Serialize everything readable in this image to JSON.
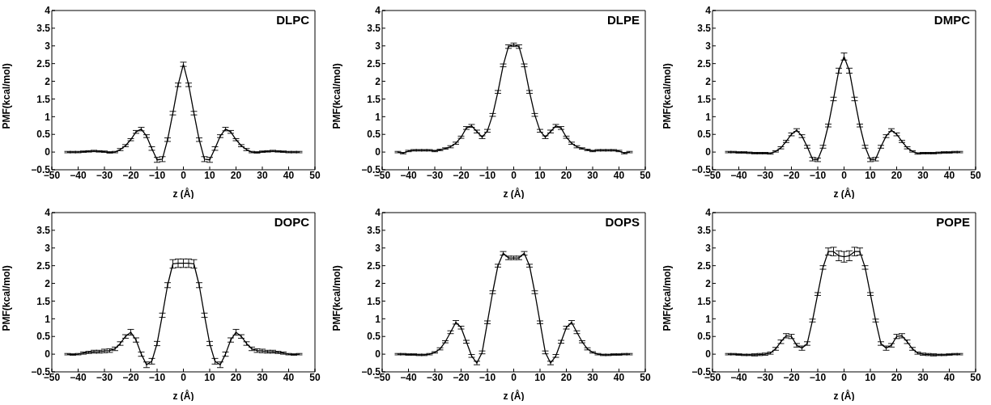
{
  "chart_data": [
    {
      "type": "line",
      "title": "DLPC",
      "xlabel": "z (Å)",
      "ylabel": "PMF(kcal/mol)",
      "xlim": [
        -50,
        50
      ],
      "xticks": [
        -50,
        -40,
        -30,
        -20,
        -10,
        0,
        10,
        20,
        30,
        40,
        50
      ],
      "ylim": [
        -0.5,
        4
      ],
      "yticks": [
        -0.5,
        0,
        0.5,
        1,
        1.5,
        2,
        2.5,
        3,
        3.5,
        4
      ],
      "grid": false,
      "marker": "none",
      "line_style": "solid",
      "x": [
        -44,
        -42,
        -40,
        -38,
        -36,
        -34,
        -32,
        -30,
        -28,
        -26,
        -24,
        -22,
        -20,
        -18,
        -16,
        -14,
        -12,
        -10,
        -8,
        -6,
        -4,
        -2,
        0,
        2,
        4,
        6,
        8,
        10,
        12,
        14,
        16,
        18,
        20,
        22,
        24,
        26,
        28,
        30,
        32,
        34,
        36,
        38,
        40,
        42,
        44
      ],
      "series": [
        {
          "color": "#000000",
          "values": [
            0,
            0,
            0,
            0.01,
            0.02,
            0.03,
            0.02,
            0.01,
            -0.01,
            0,
            0.07,
            0.18,
            0.35,
            0.57,
            0.65,
            0.45,
            0.1,
            -0.22,
            -0.2,
            0.35,
            1.1,
            1.9,
            2.48,
            1.9,
            1.1,
            0.35,
            -0.2,
            -0.22,
            0.1,
            0.45,
            0.65,
            0.57,
            0.35,
            0.18,
            0.07,
            0,
            -0.01,
            0.01,
            0.02,
            0.03,
            0.02,
            0.01,
            0,
            0,
            0
          ],
          "errors": [
            0.02,
            0.02,
            0.02,
            0.02,
            0.02,
            0.02,
            0.02,
            0.02,
            0.02,
            0.02,
            0.03,
            0.03,
            0.03,
            0.04,
            0.05,
            0.04,
            0.05,
            0.07,
            0.07,
            0.05,
            0.05,
            0.05,
            0.06,
            0.05,
            0.05,
            0.05,
            0.07,
            0.07,
            0.05,
            0.04,
            0.05,
            0.04,
            0.03,
            0.03,
            0.03,
            0.02,
            0.02,
            0.02,
            0.02,
            0.02,
            0.02,
            0.02,
            0.02,
            0.02,
            0.02
          ]
        }
      ]
    },
    {
      "type": "line",
      "title": "DLPE",
      "xlabel": "z (Å)",
      "ylabel": "PMF(kcal/mol)",
      "xlim": [
        -50,
        50
      ],
      "xticks": [
        -50,
        -40,
        -30,
        -20,
        -10,
        0,
        10,
        20,
        30,
        40,
        50
      ],
      "ylim": [
        -0.5,
        4
      ],
      "yticks": [
        -0.5,
        0,
        0.5,
        1,
        1.5,
        2,
        2.5,
        3,
        3.5,
        4
      ],
      "grid": false,
      "marker": "none",
      "line_style": "solid",
      "x": [
        -44,
        -42,
        -40,
        -38,
        -36,
        -34,
        -32,
        -30,
        -28,
        -26,
        -24,
        -22,
        -20,
        -18,
        -16,
        -14,
        -12,
        -10,
        -8,
        -6,
        -4,
        -2,
        0,
        2,
        4,
        6,
        8,
        10,
        12,
        14,
        16,
        18,
        20,
        22,
        24,
        26,
        28,
        30,
        32,
        34,
        36,
        38,
        40,
        42,
        44
      ],
      "series": [
        {
          "color": "#000000",
          "values": [
            0,
            -0.03,
            0.03,
            0.05,
            0.05,
            0.05,
            0.05,
            0.03,
            0.06,
            0.1,
            0.15,
            0.25,
            0.42,
            0.68,
            0.74,
            0.58,
            0.42,
            0.6,
            1.05,
            1.7,
            2.45,
            2.98,
            3.03,
            2.98,
            2.45,
            1.7,
            1.05,
            0.6,
            0.42,
            0.58,
            0.74,
            0.68,
            0.42,
            0.25,
            0.15,
            0.1,
            0.06,
            0.03,
            0.05,
            0.05,
            0.05,
            0.05,
            0.03,
            -0.03,
            0
          ],
          "errors": [
            0.02,
            0.02,
            0.02,
            0.02,
            0.02,
            0.02,
            0.02,
            0.02,
            0.02,
            0.02,
            0.03,
            0.03,
            0.03,
            0.04,
            0.04,
            0.04,
            0.04,
            0.04,
            0.04,
            0.04,
            0.04,
            0.05,
            0.05,
            0.05,
            0.04,
            0.04,
            0.04,
            0.04,
            0.04,
            0.04,
            0.04,
            0.04,
            0.03,
            0.03,
            0.03,
            0.02,
            0.02,
            0.02,
            0.02,
            0.02,
            0.02,
            0.02,
            0.02,
            0.02,
            0.02
          ]
        }
      ]
    },
    {
      "type": "line",
      "title": "DMPC",
      "xlabel": "z (Å)",
      "ylabel": "PMF(kcal/mol)",
      "xlim": [
        -50,
        50
      ],
      "xticks": [
        -50,
        -40,
        -30,
        -20,
        -10,
        0,
        10,
        20,
        30,
        40,
        50
      ],
      "ylim": [
        -0.5,
        4
      ],
      "yticks": [
        -0.5,
        0,
        0.5,
        1,
        1.5,
        2,
        2.5,
        3,
        3.5,
        4
      ],
      "grid": false,
      "marker": "none",
      "line_style": "solid",
      "x": [
        -44,
        -42,
        -40,
        -38,
        -36,
        -34,
        -32,
        -30,
        -28,
        -26,
        -24,
        -22,
        -20,
        -18,
        -16,
        -14,
        -12,
        -10,
        -8,
        -6,
        -4,
        -2,
        0,
        2,
        4,
        6,
        8,
        10,
        12,
        14,
        16,
        18,
        20,
        22,
        24,
        26,
        28,
        30,
        32,
        34,
        36,
        38,
        40,
        42,
        44
      ],
      "series": [
        {
          "color": "#000000",
          "values": [
            0,
            0,
            -0.01,
            -0.01,
            -0.02,
            -0.03,
            -0.03,
            -0.03,
            -0.04,
            0.02,
            0.12,
            0.3,
            0.5,
            0.62,
            0.45,
            0.15,
            -0.2,
            -0.22,
            0.15,
            0.75,
            1.5,
            2.3,
            2.7,
            2.3,
            1.5,
            0.75,
            0.15,
            -0.22,
            -0.2,
            0.15,
            0.45,
            0.62,
            0.5,
            0.3,
            0.12,
            0.02,
            -0.04,
            -0.03,
            -0.03,
            -0.03,
            -0.02,
            -0.01,
            -0.01,
            0,
            0
          ],
          "errors": [
            0.02,
            0.02,
            0.02,
            0.02,
            0.02,
            0.02,
            0.02,
            0.02,
            0.02,
            0.02,
            0.03,
            0.03,
            0.04,
            0.04,
            0.04,
            0.04,
            0.05,
            0.05,
            0.04,
            0.04,
            0.05,
            0.07,
            0.1,
            0.07,
            0.05,
            0.04,
            0.04,
            0.05,
            0.05,
            0.04,
            0.04,
            0.04,
            0.04,
            0.03,
            0.03,
            0.02,
            0.02,
            0.02,
            0.02,
            0.02,
            0.02,
            0.02,
            0.02,
            0.02,
            0.02
          ]
        }
      ]
    },
    {
      "type": "line",
      "title": "DOPC",
      "xlabel": "z (Å)",
      "ylabel": "PMF(kcal/mol)",
      "xlim": [
        -50,
        50
      ],
      "xticks": [
        -50,
        -40,
        -30,
        -20,
        -10,
        0,
        10,
        20,
        30,
        40,
        50
      ],
      "ylim": [
        -0.5,
        4
      ],
      "yticks": [
        -0.5,
        0,
        0.5,
        1,
        1.5,
        2,
        2.5,
        3,
        3.5,
        4
      ],
      "grid": false,
      "marker": "none",
      "line_style": "solid",
      "x": [
        -44,
        -42,
        -40,
        -38,
        -36,
        -34,
        -32,
        -30,
        -28,
        -26,
        -24,
        -22,
        -20,
        -18,
        -16,
        -14,
        -12,
        -10,
        -8,
        -6,
        -4,
        -2,
        0,
        2,
        4,
        6,
        8,
        10,
        12,
        14,
        16,
        18,
        20,
        22,
        24,
        26,
        28,
        30,
        32,
        34,
        36,
        38,
        40,
        42,
        44
      ],
      "series": [
        {
          "color": "#000000",
          "values": [
            0,
            -0.01,
            0,
            0.03,
            0.05,
            0.07,
            0.07,
            0.09,
            0.1,
            0.15,
            0.3,
            0.5,
            0.62,
            0.4,
            0,
            -0.3,
            -0.2,
            0.3,
            1.1,
            1.95,
            2.55,
            2.57,
            2.57,
            2.57,
            2.55,
            1.95,
            1.1,
            0.3,
            -0.2,
            -0.3,
            0,
            0.4,
            0.62,
            0.5,
            0.3,
            0.15,
            0.1,
            0.09,
            0.07,
            0.07,
            0.05,
            0.03,
            0,
            -0.01,
            0
          ],
          "errors": [
            0.02,
            0.02,
            0.02,
            0.03,
            0.03,
            0.04,
            0.04,
            0.05,
            0.05,
            0.05,
            0.05,
            0.05,
            0.08,
            0.06,
            0.06,
            0.08,
            0.08,
            0.06,
            0.06,
            0.07,
            0.12,
            0.12,
            0.12,
            0.12,
            0.12,
            0.07,
            0.06,
            0.06,
            0.08,
            0.08,
            0.06,
            0.06,
            0.08,
            0.05,
            0.05,
            0.05,
            0.05,
            0.05,
            0.04,
            0.04,
            0.03,
            0.03,
            0.02,
            0.02,
            0.02
          ]
        }
      ]
    },
    {
      "type": "line",
      "title": "DOPS",
      "xlabel": "z (Å)",
      "ylabel": "PMF(kcal/mol)",
      "xlim": [
        -50,
        50
      ],
      "xticks": [
        -50,
        -40,
        -30,
        -20,
        -10,
        0,
        10,
        20,
        30,
        40,
        50
      ],
      "ylim": [
        -0.5,
        4
      ],
      "yticks": [
        -0.5,
        0,
        0.5,
        1,
        1.5,
        2,
        2.5,
        3,
        3.5,
        4
      ],
      "grid": false,
      "marker": "none",
      "line_style": "solid",
      "x": [
        -44,
        -42,
        -40,
        -38,
        -36,
        -34,
        -32,
        -30,
        -28,
        -26,
        -24,
        -22,
        -20,
        -18,
        -16,
        -14,
        -12,
        -10,
        -8,
        -6,
        -4,
        -2,
        0,
        2,
        4,
        6,
        8,
        10,
        12,
        14,
        16,
        18,
        20,
        22,
        24,
        26,
        28,
        30,
        32,
        34,
        36,
        38,
        40,
        42,
        44
      ],
      "series": [
        {
          "color": "#000000",
          "values": [
            0,
            0,
            -0.01,
            -0.01,
            -0.02,
            -0.02,
            0,
            0.05,
            0.15,
            0.35,
            0.62,
            0.9,
            0.75,
            0.35,
            -0.05,
            -0.25,
            0.05,
            0.9,
            1.75,
            2.5,
            2.85,
            2.72,
            2.72,
            2.72,
            2.85,
            2.5,
            1.75,
            0.9,
            0.05,
            -0.25,
            -0.05,
            0.35,
            0.75,
            0.9,
            0.62,
            0.35,
            0.15,
            0.05,
            0,
            -0.02,
            -0.02,
            -0.01,
            -0.01,
            0,
            0
          ],
          "errors": [
            0.02,
            0.02,
            0.02,
            0.02,
            0.02,
            0.02,
            0.02,
            0.02,
            0.03,
            0.03,
            0.04,
            0.05,
            0.04,
            0.04,
            0.04,
            0.05,
            0.04,
            0.04,
            0.04,
            0.04,
            0.05,
            0.05,
            0.05,
            0.05,
            0.05,
            0.04,
            0.04,
            0.04,
            0.04,
            0.05,
            0.04,
            0.04,
            0.04,
            0.05,
            0.04,
            0.03,
            0.03,
            0.02,
            0.02,
            0.02,
            0.02,
            0.02,
            0.02,
            0.02,
            0.02
          ]
        }
      ]
    },
    {
      "type": "line",
      "title": "POPE",
      "xlabel": "z (Å)",
      "ylabel": "PMF(kcal/mol)",
      "xlim": [
        -50,
        50
      ],
      "xticks": [
        -50,
        -40,
        -30,
        -20,
        -10,
        0,
        10,
        20,
        30,
        40,
        50
      ],
      "ylim": [
        -0.5,
        4
      ],
      "yticks": [
        -0.5,
        0,
        0.5,
        1,
        1.5,
        2,
        2.5,
        3,
        3.5,
        4
      ],
      "grid": false,
      "marker": "none",
      "line_style": "solid",
      "x": [
        -44,
        -42,
        -40,
        -38,
        -36,
        -34,
        -32,
        -30,
        -28,
        -26,
        -24,
        -22,
        -20,
        -18,
        -16,
        -14,
        -12,
        -10,
        -8,
        -6,
        -4,
        -2,
        0,
        2,
        4,
        6,
        8,
        10,
        12,
        14,
        16,
        18,
        20,
        22,
        24,
        26,
        28,
        30,
        32,
        34,
        36,
        38,
        40,
        42,
        44
      ],
      "series": [
        {
          "color": "#000000",
          "values": [
            0,
            0,
            -0.01,
            -0.02,
            -0.02,
            -0.02,
            -0.01,
            0,
            0.03,
            0.15,
            0.35,
            0.52,
            0.5,
            0.25,
            0.17,
            0.3,
            0.95,
            1.7,
            2.45,
            2.9,
            2.9,
            2.78,
            2.75,
            2.78,
            2.9,
            2.9,
            2.45,
            1.7,
            0.95,
            0.3,
            0.17,
            0.25,
            0.5,
            0.52,
            0.35,
            0.15,
            0.03,
            0,
            -0.01,
            -0.02,
            -0.02,
            -0.02,
            -0.01,
            0,
            0
          ],
          "errors": [
            0.02,
            0.02,
            0.02,
            0.02,
            0.02,
            0.03,
            0.03,
            0.03,
            0.03,
            0.04,
            0.05,
            0.06,
            0.06,
            0.05,
            0.06,
            0.05,
            0.04,
            0.04,
            0.05,
            0.1,
            0.12,
            0.14,
            0.15,
            0.14,
            0.12,
            0.1,
            0.05,
            0.04,
            0.04,
            0.05,
            0.06,
            0.05,
            0.06,
            0.06,
            0.05,
            0.04,
            0.03,
            0.03,
            0.03,
            0.03,
            0.02,
            0.02,
            0.02,
            0.02,
            0.02
          ]
        }
      ]
    }
  ]
}
